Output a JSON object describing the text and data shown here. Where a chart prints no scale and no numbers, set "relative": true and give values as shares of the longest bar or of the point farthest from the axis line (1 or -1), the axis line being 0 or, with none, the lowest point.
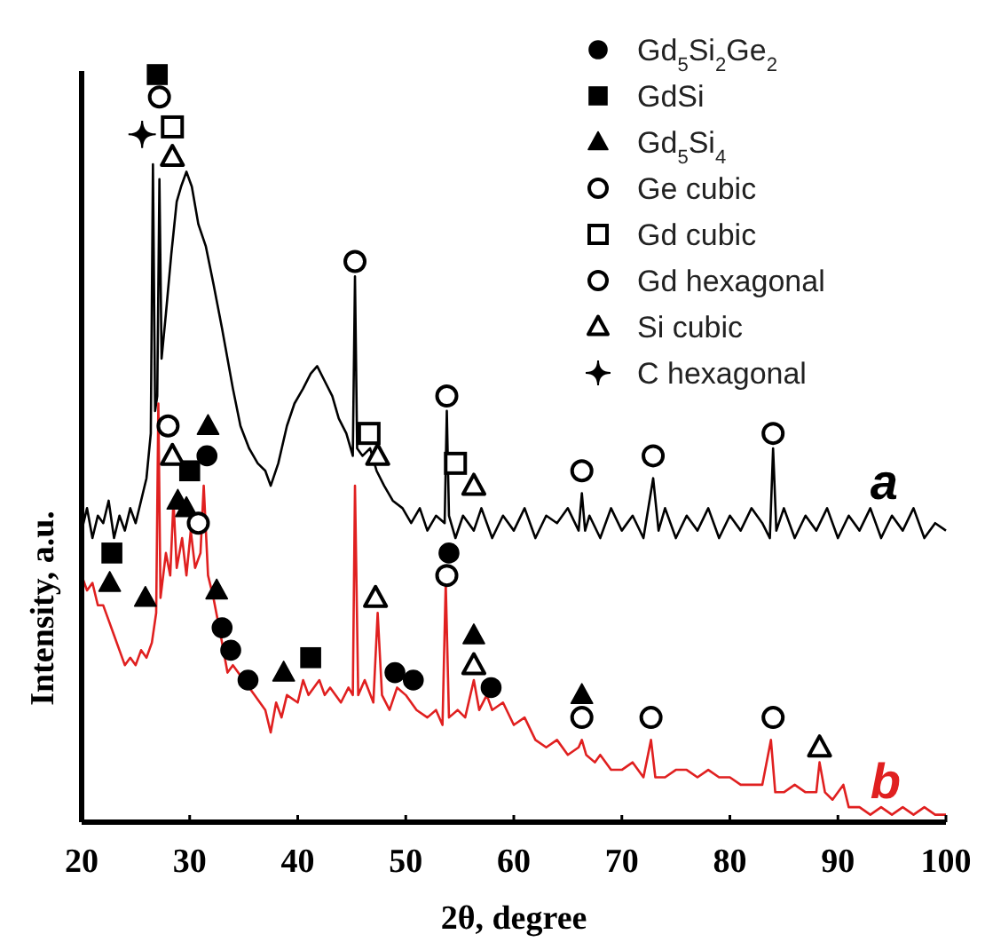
{
  "chart_data": {
    "type": "line",
    "xlabel": "2θ, degree",
    "ylabel": "Intensity, a.u.",
    "relative": true,
    "xlim": [
      20,
      100
    ],
    "xticks": [
      20,
      30,
      40,
      50,
      60,
      70,
      80,
      90,
      100
    ],
    "legend": "top right",
    "grid": false,
    "series": [
      {
        "name": "a",
        "color": "#000000",
        "marker": "none",
        "line_style": "solid",
        "x": [
          20,
          20.5,
          21,
          21.5,
          22,
          22.5,
          23,
          23.5,
          24,
          24.5,
          25,
          25.5,
          26,
          26.4,
          26.6,
          26.8,
          27.0,
          27.2,
          27.4,
          27.8,
          28.3,
          28.8,
          29.2,
          29.7,
          30.2,
          30.8,
          31.5,
          32.2,
          33,
          34,
          34.7,
          35.5,
          36.3,
          37,
          37.5,
          38.2,
          39,
          39.7,
          40.5,
          41.2,
          41.8,
          42.5,
          43.2,
          43.8,
          44.5,
          45.1,
          45.3,
          45.5,
          46,
          46.7,
          47.3,
          48,
          48.8,
          49.7,
          50.5,
          51.3,
          52,
          52.8,
          53.6,
          53.8,
          54.0,
          54.6,
          55.3,
          56.3,
          57,
          58,
          59,
          60,
          61,
          62,
          63,
          64,
          65,
          66,
          66.3,
          66.6,
          67,
          68,
          69,
          70,
          71,
          72,
          72.9,
          73.4,
          74,
          75,
          76,
          77,
          78,
          79,
          80,
          81,
          82,
          83,
          83.7,
          84.0,
          84.3,
          85,
          86,
          87,
          88,
          89,
          90,
          91,
          92,
          93,
          94,
          95,
          96,
          97,
          98,
          99,
          100
        ],
        "values": [
          0.39,
          0.42,
          0.38,
          0.41,
          0.4,
          0.43,
          0.38,
          0.41,
          0.39,
          0.42,
          0.4,
          0.43,
          0.46,
          0.52,
          0.88,
          0.55,
          0.57,
          0.86,
          0.62,
          0.68,
          0.76,
          0.83,
          0.85,
          0.87,
          0.85,
          0.8,
          0.77,
          0.72,
          0.66,
          0.58,
          0.53,
          0.5,
          0.48,
          0.47,
          0.45,
          0.48,
          0.53,
          0.56,
          0.58,
          0.6,
          0.61,
          0.59,
          0.57,
          0.54,
          0.52,
          0.49,
          0.73,
          0.5,
          0.49,
          0.5,
          0.47,
          0.45,
          0.43,
          0.42,
          0.4,
          0.42,
          0.39,
          0.41,
          0.4,
          0.55,
          0.41,
          0.38,
          0.41,
          0.39,
          0.42,
          0.38,
          0.41,
          0.39,
          0.42,
          0.38,
          0.41,
          0.4,
          0.42,
          0.39,
          0.44,
          0.39,
          0.41,
          0.38,
          0.42,
          0.39,
          0.41,
          0.38,
          0.46,
          0.39,
          0.42,
          0.38,
          0.41,
          0.39,
          0.42,
          0.38,
          0.41,
          0.39,
          0.42,
          0.4,
          0.38,
          0.5,
          0.39,
          0.42,
          0.38,
          0.41,
          0.39,
          0.42,
          0.38,
          0.41,
          0.39,
          0.42,
          0.38,
          0.41,
          0.39,
          0.42,
          0.38,
          0.4,
          0.39
        ]
      },
      {
        "name": "b",
        "color": "#e02020",
        "marker": "none",
        "line_style": "solid",
        "x": [
          20,
          20.5,
          21,
          21.5,
          22,
          22.5,
          23,
          23.5,
          24,
          24.5,
          25,
          25.5,
          26,
          26.5,
          26.9,
          27.1,
          27.3,
          27.8,
          28.2,
          28.5,
          28.8,
          29.3,
          29.7,
          30.1,
          30.5,
          31,
          31.3,
          31.7,
          32.2,
          33,
          33.5,
          34,
          35,
          36,
          37,
          37.5,
          38,
          38.5,
          39,
          40,
          40.5,
          41,
          42,
          42.5,
          43,
          44,
          44.7,
          45.1,
          45.3,
          45.6,
          46.2,
          47,
          47.4,
          47.8,
          48.5,
          49.2,
          50,
          51,
          52,
          52.8,
          53.4,
          53.7,
          54,
          54.8,
          55.5,
          56.3,
          56.8,
          57.5,
          58,
          59,
          60,
          61,
          62,
          63,
          64,
          65,
          66,
          66.3,
          66.7,
          67.5,
          68,
          69,
          70,
          71,
          72,
          72.7,
          73.1,
          74,
          75,
          76,
          77,
          78,
          79,
          80,
          81,
          82,
          83,
          83.8,
          84.2,
          85,
          86,
          87,
          88,
          88.3,
          88.8,
          89.5,
          90.5,
          91,
          92,
          93,
          94,
          95,
          96,
          97,
          98,
          99,
          100
        ],
        "values": [
          0.33,
          0.31,
          0.32,
          0.29,
          0.29,
          0.27,
          0.25,
          0.23,
          0.21,
          0.22,
          0.21,
          0.23,
          0.22,
          0.24,
          0.28,
          0.56,
          0.3,
          0.36,
          0.33,
          0.43,
          0.34,
          0.38,
          0.33,
          0.39,
          0.34,
          0.36,
          0.45,
          0.33,
          0.3,
          0.24,
          0.2,
          0.21,
          0.19,
          0.17,
          0.15,
          0.12,
          0.16,
          0.14,
          0.17,
          0.16,
          0.19,
          0.17,
          0.19,
          0.17,
          0.18,
          0.16,
          0.18,
          0.17,
          0.45,
          0.17,
          0.19,
          0.16,
          0.28,
          0.17,
          0.15,
          0.18,
          0.17,
          0.15,
          0.14,
          0.15,
          0.13,
          0.32,
          0.14,
          0.15,
          0.14,
          0.19,
          0.15,
          0.17,
          0.15,
          0.16,
          0.13,
          0.14,
          0.11,
          0.1,
          0.11,
          0.09,
          0.1,
          0.11,
          0.09,
          0.08,
          0.09,
          0.07,
          0.07,
          0.08,
          0.06,
          0.11,
          0.06,
          0.06,
          0.07,
          0.07,
          0.06,
          0.07,
          0.06,
          0.06,
          0.05,
          0.05,
          0.05,
          0.11,
          0.04,
          0.04,
          0.05,
          0.04,
          0.04,
          0.08,
          0.04,
          0.03,
          0.05,
          0.02,
          0.02,
          0.01,
          0.02,
          0.01,
          0.02,
          0.01,
          0.02,
          0.01,
          0.01
        ]
      },
      {
        "name": "Gd$_{5}$Si$_{2}$Ge$_{2}$",
        "type": "scatter",
        "color": "#000000",
        "marker": "circle",
        "x": [
          31.6,
          33.0,
          33.8,
          35.4,
          49.0,
          50.7,
          54.0,
          57.9
        ],
        "values": [
          0.49,
          0.26,
          0.23,
          0.19,
          0.2,
          0.19,
          0.36,
          0.18
        ]
      },
      {
        "name": "GdSi",
        "type": "scatter",
        "color": "#000000",
        "marker": "square",
        "x": [
          27.0,
          30.0,
          22.8,
          41.2
        ],
        "values": [
          1.0,
          0.47,
          0.36,
          0.22
        ]
      },
      {
        "name": "Gd$_{5}$Si$_{4}$",
        "type": "scatter",
        "color": "#000000",
        "marker": "triangle",
        "x": [
          31.7,
          28.9,
          29.7,
          22.6,
          25.9,
          32.5,
          38.7,
          56.3,
          66.3
        ],
        "values": [
          0.53,
          0.43,
          0.42,
          0.32,
          0.3,
          0.31,
          0.2,
          0.25,
          0.17
        ]
      },
      {
        "name": "Ge cubic",
        "type": "scatter",
        "color": "#ffffff",
        "marker": "circle",
        "x": [
          27.2,
          45.3,
          53.8,
          66.3,
          72.9,
          84.0,
          53.8,
          66.3,
          72.7,
          84.0
        ],
        "values": [
          0.97,
          0.75,
          0.57,
          0.47,
          0.49,
          0.52,
          0.33,
          0.14,
          0.14,
          0.14
        ]
      },
      {
        "name": "Gd cubic",
        "type": "scatter",
        "color": "#ffffff",
        "marker": "square",
        "x": [
          28.4,
          46.6,
          54.6
        ],
        "values": [
          0.93,
          0.52,
          0.48
        ]
      },
      {
        "name": "Gd hexagonal",
        "type": "scatter",
        "color": "#ffffff",
        "marker": "circle",
        "x": [
          28.0,
          30.8
        ],
        "values": [
          0.53,
          0.4
        ]
      },
      {
        "name": "Si cubic",
        "type": "scatter",
        "color": "#ffffff",
        "marker": "triangle",
        "x": [
          28.4,
          28.4,
          47.4,
          56.3,
          47.2,
          56.3,
          88.3
        ],
        "values": [
          0.89,
          0.49,
          0.49,
          0.45,
          0.3,
          0.21,
          0.1
        ]
      },
      {
        "name": "C hexagonal",
        "type": "scatter",
        "color": "#000000",
        "marker": "cross",
        "x": [
          25.6
        ],
        "values": [
          0.92
        ]
      }
    ]
  }
}
